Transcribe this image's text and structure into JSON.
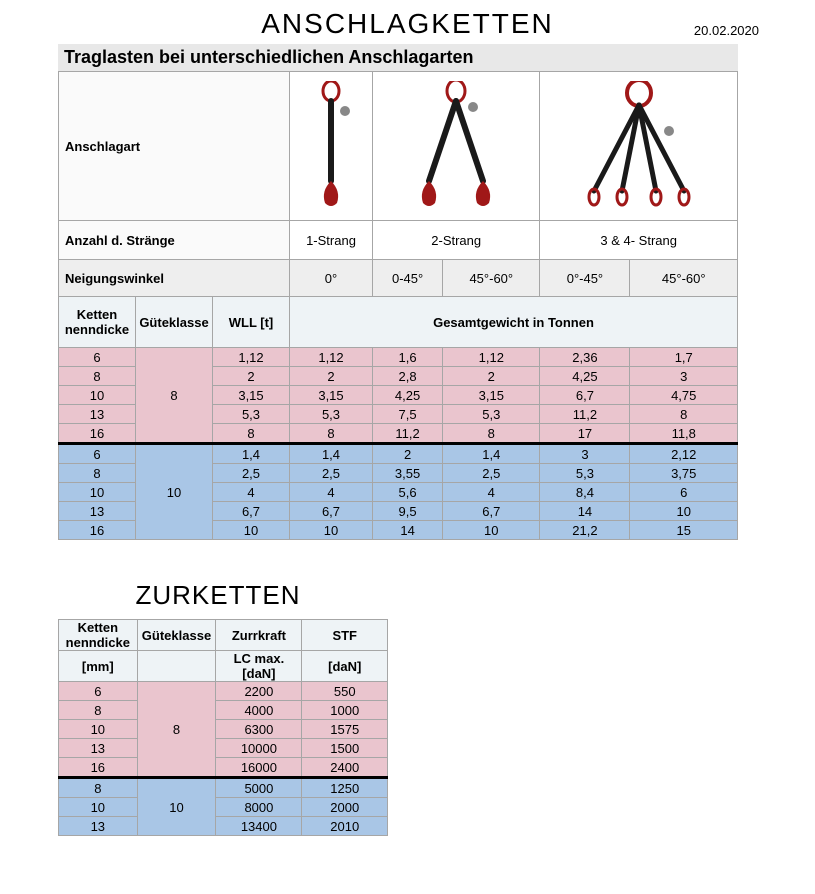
{
  "date": "20.02.2020",
  "section1": {
    "title": "ANSCHLAGKETTEN",
    "subtitle": "Traglasten bei unterschiedlichen Anschlagarten",
    "row_labels": {
      "anschlagart": "Anschlagart",
      "anzahl": "Anzahl d. Stränge",
      "neigung": "Neigungswinkel",
      "ketten": "Ketten nenndicke",
      "guete": "Güteklasse",
      "wll": "WLL [t]",
      "gesamt": "Gesamtgewicht in Tonnen"
    },
    "strang_labels": [
      "1-Strang",
      "2-Strang",
      "3 & 4- Strang"
    ],
    "angle_labels": [
      "0°",
      "0-45°",
      "45°-60°",
      "0°-45°",
      "45°-60°"
    ],
    "colors": {
      "pink": "#eac5ce",
      "blue": "#a9c6e6",
      "header_grey": "#eeeeee",
      "header_blue": "#eef3f6",
      "border": "#a6a6a6",
      "chain_red": "#a01818",
      "chain_dark": "#1a1a1a"
    },
    "group8": {
      "guete": "8",
      "rows": [
        {
          "dicke": "6",
          "vals": [
            "1,12",
            "1,12",
            "1,6",
            "1,12",
            "2,36",
            "1,7"
          ]
        },
        {
          "dicke": "8",
          "vals": [
            "2",
            "2",
            "2,8",
            "2",
            "4,25",
            "3"
          ]
        },
        {
          "dicke": "10",
          "vals": [
            "3,15",
            "3,15",
            "4,25",
            "3,15",
            "6,7",
            "4,75"
          ]
        },
        {
          "dicke": "13",
          "vals": [
            "5,3",
            "5,3",
            "7,5",
            "5,3",
            "11,2",
            "8"
          ]
        },
        {
          "dicke": "16",
          "vals": [
            "8",
            "8",
            "11,2",
            "8",
            "17",
            "11,8"
          ]
        }
      ]
    },
    "group10": {
      "guete": "10",
      "rows": [
        {
          "dicke": "6",
          "vals": [
            "1,4",
            "1,4",
            "2",
            "1,4",
            "3",
            "2,12"
          ]
        },
        {
          "dicke": "8",
          "vals": [
            "2,5",
            "2,5",
            "3,55",
            "2,5",
            "5,3",
            "3,75"
          ]
        },
        {
          "dicke": "10",
          "vals": [
            "4",
            "4",
            "5,6",
            "4",
            "8,4",
            "6"
          ]
        },
        {
          "dicke": "13",
          "vals": [
            "6,7",
            "6,7",
            "9,5",
            "6,7",
            "14",
            "10"
          ]
        },
        {
          "dicke": "16",
          "vals": [
            "10",
            "10",
            "14",
            "10",
            "21,2",
            "15"
          ]
        }
      ]
    }
  },
  "section2": {
    "title": "ZURKETTEN",
    "headers": {
      "ketten": "Ketten nenndicke",
      "guete": "Güteklasse",
      "zurr": "Zurrkraft",
      "stf": "STF",
      "mm": "[mm]",
      "lc": "LC max. [daN]",
      "dan": "[daN]"
    },
    "group8": {
      "guete": "8",
      "rows": [
        {
          "dicke": "6",
          "lc": "2200",
          "stf": "550"
        },
        {
          "dicke": "8",
          "lc": "4000",
          "stf": "1000"
        },
        {
          "dicke": "10",
          "lc": "6300",
          "stf": "1575"
        },
        {
          "dicke": "13",
          "lc": "10000",
          "stf": "1500"
        },
        {
          "dicke": "16",
          "lc": "16000",
          "stf": "2400"
        }
      ]
    },
    "group10": {
      "guete": "10",
      "rows": [
        {
          "dicke": "8",
          "lc": "5000",
          "stf": "1250"
        },
        {
          "dicke": "10",
          "lc": "8000",
          "stf": "2000"
        },
        {
          "dicke": "13",
          "lc": "13400",
          "stf": "2010"
        }
      ]
    }
  }
}
